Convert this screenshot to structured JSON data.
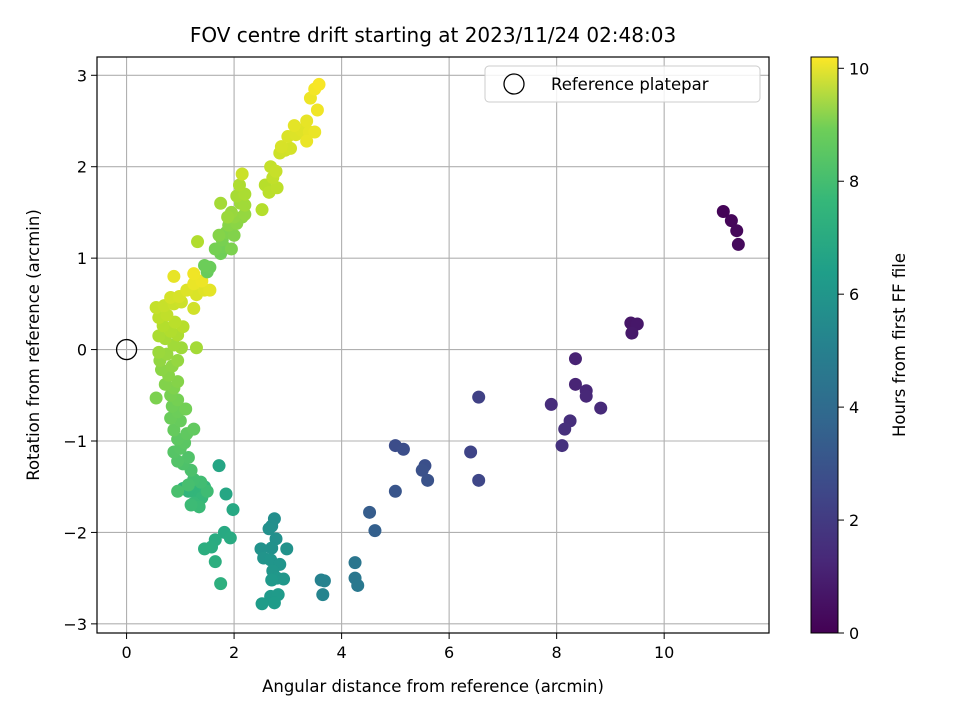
{
  "chart_data": {
    "type": "scatter",
    "title": "FOV centre drift starting at 2023/11/24 02:48:03",
    "xlabel": "Angular distance from reference (arcmin)",
    "ylabel": "Rotation from reference (arcmin)",
    "colorbar_label": "Hours from first FF file",
    "xlim": [
      -0.55,
      11.95
    ],
    "ylim": [
      -3.1,
      3.2
    ],
    "clim": [
      0,
      10.2
    ],
    "x_ticks": [
      0,
      2,
      4,
      6,
      8,
      10
    ],
    "y_ticks": [
      -3,
      -2,
      -1,
      0,
      1,
      2,
      3
    ],
    "colorbar_ticks": [
      0,
      2,
      4,
      6,
      8,
      10
    ],
    "x_tick_labels": [
      "0",
      "2",
      "4",
      "6",
      "8",
      "10"
    ],
    "y_tick_labels": [
      "−3",
      "−2",
      "−1",
      "0",
      "1",
      "2",
      "3"
    ],
    "colorbar_tick_labels": [
      "0",
      "2",
      "4",
      "6",
      "8",
      "10"
    ],
    "grid": true,
    "legend": {
      "placement": "top-right",
      "entries": [
        "Reference platepar"
      ]
    },
    "colormap": "viridis",
    "reference_point": {
      "x": 0,
      "y": 0,
      "label": "Reference platepar"
    },
    "series": [
      {
        "points": [
          {
            "x": 11.1,
            "y": 1.51,
            "c": 0.1
          },
          {
            "x": 11.25,
            "y": 1.41,
            "c": 0.15
          },
          {
            "x": 11.35,
            "y": 1.3,
            "c": 0.2
          },
          {
            "x": 11.38,
            "y": 1.15,
            "c": 0.25
          },
          {
            "x": 9.38,
            "y": 0.29,
            "c": 0.6
          },
          {
            "x": 9.5,
            "y": 0.28,
            "c": 0.65
          },
          {
            "x": 9.4,
            "y": 0.18,
            "c": 0.7
          },
          {
            "x": 8.35,
            "y": -0.1,
            "c": 1.0
          },
          {
            "x": 8.35,
            "y": -0.38,
            "c": 1.05
          },
          {
            "x": 8.55,
            "y": -0.45,
            "c": 1.1
          },
          {
            "x": 8.55,
            "y": -0.51,
            "c": 1.15
          },
          {
            "x": 8.82,
            "y": -0.64,
            "c": 1.2
          },
          {
            "x": 7.9,
            "y": -0.6,
            "c": 1.3
          },
          {
            "x": 8.25,
            "y": -0.78,
            "c": 1.35
          },
          {
            "x": 8.15,
            "y": -0.87,
            "c": 1.4
          },
          {
            "x": 8.1,
            "y": -1.05,
            "c": 1.45
          },
          {
            "x": 6.55,
            "y": -0.52,
            "c": 2.0
          },
          {
            "x": 6.4,
            "y": -1.12,
            "c": 2.1
          },
          {
            "x": 6.55,
            "y": -1.43,
            "c": 2.2
          },
          {
            "x": 5.0,
            "y": -1.05,
            "c": 2.4
          },
          {
            "x": 5.15,
            "y": -1.09,
            "c": 2.45
          },
          {
            "x": 5.55,
            "y": -1.27,
            "c": 2.5
          },
          {
            "x": 5.5,
            "y": -1.32,
            "c": 2.55
          },
          {
            "x": 5.6,
            "y": -1.43,
            "c": 2.6
          },
          {
            "x": 5.0,
            "y": -1.55,
            "c": 2.7
          },
          {
            "x": 4.52,
            "y": -1.78,
            "c": 3.0
          },
          {
            "x": 4.62,
            "y": -1.98,
            "c": 3.1
          },
          {
            "x": 4.25,
            "y": -2.33,
            "c": 4.0
          },
          {
            "x": 4.25,
            "y": -2.5,
            "c": 4.05
          },
          {
            "x": 4.3,
            "y": -2.58,
            "c": 4.1
          },
          {
            "x": 3.62,
            "y": -2.52,
            "c": 4.5
          },
          {
            "x": 3.68,
            "y": -2.53,
            "c": 4.55
          },
          {
            "x": 3.65,
            "y": -2.68,
            "c": 4.6
          },
          {
            "x": 2.75,
            "y": -1.85,
            "c": 5.0
          },
          {
            "x": 2.7,
            "y": -1.93,
            "c": 5.05
          },
          {
            "x": 2.65,
            "y": -1.96,
            "c": 5.1
          },
          {
            "x": 2.78,
            "y": -2.07,
            "c": 5.1
          },
          {
            "x": 2.7,
            "y": -2.17,
            "c": 5.15
          },
          {
            "x": 2.98,
            "y": -2.18,
            "c": 5.2
          },
          {
            "x": 2.5,
            "y": -2.18,
            "c": 5.2
          },
          {
            "x": 2.55,
            "y": -2.28,
            "c": 5.25
          },
          {
            "x": 2.68,
            "y": -2.3,
            "c": 5.3
          },
          {
            "x": 2.85,
            "y": -2.35,
            "c": 5.3
          },
          {
            "x": 2.72,
            "y": -2.42,
            "c": 5.35
          },
          {
            "x": 2.8,
            "y": -2.5,
            "c": 5.4
          },
          {
            "x": 2.92,
            "y": -2.51,
            "c": 5.4
          },
          {
            "x": 2.7,
            "y": -2.52,
            "c": 5.45
          },
          {
            "x": 2.68,
            "y": -2.7,
            "c": 5.5
          },
          {
            "x": 2.82,
            "y": -2.68,
            "c": 5.55
          },
          {
            "x": 2.75,
            "y": -2.77,
            "c": 5.6
          },
          {
            "x": 2.52,
            "y": -2.78,
            "c": 5.6
          },
          {
            "x": 1.72,
            "y": -1.27,
            "c": 6.0
          },
          {
            "x": 1.85,
            "y": -1.58,
            "c": 6.05
          },
          {
            "x": 1.98,
            "y": -1.75,
            "c": 6.1
          },
          {
            "x": 1.82,
            "y": -2.0,
            "c": 6.15
          },
          {
            "x": 1.93,
            "y": -2.06,
            "c": 6.2
          },
          {
            "x": 1.65,
            "y": -2.08,
            "c": 6.25
          },
          {
            "x": 1.58,
            "y": -2.16,
            "c": 6.3
          },
          {
            "x": 1.45,
            "y": -2.18,
            "c": 6.35
          },
          {
            "x": 1.65,
            "y": -2.32,
            "c": 6.4
          },
          {
            "x": 1.75,
            "y": -2.56,
            "c": 6.45
          },
          {
            "x": 1.05,
            "y": -1.52,
            "c": 6.6
          },
          {
            "x": 1.15,
            "y": -1.55,
            "c": 6.65
          },
          {
            "x": 1.25,
            "y": -1.55,
            "c": 6.7
          },
          {
            "x": 1.35,
            "y": -1.6,
            "c": 6.7
          },
          {
            "x": 1.45,
            "y": -1.5,
            "c": 6.75
          },
          {
            "x": 1.4,
            "y": -1.62,
            "c": 6.8
          },
          {
            "x": 1.25,
            "y": -1.68,
            "c": 6.85
          },
          {
            "x": 1.35,
            "y": -1.72,
            "c": 6.9
          },
          {
            "x": 1.2,
            "y": -1.7,
            "c": 6.95
          },
          {
            "x": 1.5,
            "y": -1.55,
            "c": 7.0
          },
          {
            "x": 1.38,
            "y": -1.45,
            "c": 7.05
          },
          {
            "x": 1.25,
            "y": -1.42,
            "c": 7.1
          },
          {
            "x": 1.15,
            "y": -1.48,
            "c": 7.15
          },
          {
            "x": 0.95,
            "y": -1.55,
            "c": 7.2
          },
          {
            "x": 1.2,
            "y": -1.32,
            "c": 7.25
          },
          {
            "x": 1.05,
            "y": -1.25,
            "c": 7.3
          },
          {
            "x": 1.15,
            "y": -1.18,
            "c": 7.35
          },
          {
            "x": 0.95,
            "y": -1.22,
            "c": 7.4
          },
          {
            "x": 0.88,
            "y": -1.12,
            "c": 7.45
          },
          {
            "x": 1.0,
            "y": -1.08,
            "c": 7.5
          },
          {
            "x": 1.08,
            "y": -1.02,
            "c": 7.55
          },
          {
            "x": 0.95,
            "y": -0.98,
            "c": 7.6
          },
          {
            "x": 1.12,
            "y": -0.92,
            "c": 7.65
          },
          {
            "x": 1.25,
            "y": -0.87,
            "c": 7.7
          },
          {
            "x": 0.88,
            "y": -0.88,
            "c": 7.75
          },
          {
            "x": 1.0,
            "y": -0.78,
            "c": 7.8
          },
          {
            "x": 0.82,
            "y": -0.75,
            "c": 7.85
          },
          {
            "x": 0.95,
            "y": -0.68,
            "c": 7.9
          },
          {
            "x": 0.85,
            "y": -0.62,
            "c": 7.95
          },
          {
            "x": 1.1,
            "y": -0.65,
            "c": 8.0
          },
          {
            "x": 0.95,
            "y": -0.55,
            "c": 8.05
          },
          {
            "x": 0.82,
            "y": -0.5,
            "c": 8.1
          },
          {
            "x": 0.55,
            "y": -0.53,
            "c": 8.15
          },
          {
            "x": 0.88,
            "y": -0.42,
            "c": 8.2
          },
          {
            "x": 0.72,
            "y": -0.38,
            "c": 8.25
          },
          {
            "x": 0.95,
            "y": -0.35,
            "c": 8.3
          },
          {
            "x": 0.78,
            "y": -0.28,
            "c": 8.35
          },
          {
            "x": 0.65,
            "y": -0.22,
            "c": 8.4
          },
          {
            "x": 0.85,
            "y": -0.18,
            "c": 8.45
          },
          {
            "x": 0.62,
            "y": -0.12,
            "c": 8.5
          },
          {
            "x": 0.95,
            "y": -0.12,
            "c": 8.55
          },
          {
            "x": 0.75,
            "y": -0.05,
            "c": 8.6
          },
          {
            "x": 0.6,
            "y": -0.03,
            "c": 8.65
          },
          {
            "x": 1.02,
            "y": 0.02,
            "c": 8.7
          },
          {
            "x": 0.88,
            "y": 0.05,
            "c": 8.75
          },
          {
            "x": 1.3,
            "y": 0.02,
            "c": 8.8
          },
          {
            "x": 0.72,
            "y": 0.12,
            "c": 8.85
          },
          {
            "x": 0.6,
            "y": 0.15,
            "c": 8.9
          },
          {
            "x": 0.95,
            "y": 0.16,
            "c": 8.95
          },
          {
            "x": 0.82,
            "y": 0.2,
            "c": 9.0
          },
          {
            "x": 0.68,
            "y": 0.26,
            "c": 9.05
          },
          {
            "x": 1.05,
            "y": 0.25,
            "c": 9.1
          },
          {
            "x": 0.9,
            "y": 0.3,
            "c": 9.15
          },
          {
            "x": 0.6,
            "y": 0.35,
            "c": 9.2
          },
          {
            "x": 0.75,
            "y": 0.38,
            "c": 9.25
          },
          {
            "x": 0.55,
            "y": 0.46,
            "c": 9.3
          },
          {
            "x": 0.7,
            "y": 0.48,
            "c": 9.35
          },
          {
            "x": 0.88,
            "y": 0.5,
            "c": 9.4
          },
          {
            "x": 1.02,
            "y": 0.52,
            "c": 9.45
          },
          {
            "x": 1.25,
            "y": 0.45,
            "c": 9.5
          },
          {
            "x": 0.82,
            "y": 0.57,
            "c": 9.55
          },
          {
            "x": 0.98,
            "y": 0.58,
            "c": 9.6
          },
          {
            "x": 1.3,
            "y": 0.6,
            "c": 9.65
          },
          {
            "x": 1.12,
            "y": 0.65,
            "c": 9.7
          },
          {
            "x": 1.45,
            "y": 0.65,
            "c": 9.75
          },
          {
            "x": 1.55,
            "y": 0.65,
            "c": 9.8
          },
          {
            "x": 0.88,
            "y": 0.8,
            "c": 9.85
          },
          {
            "x": 1.25,
            "y": 0.72,
            "c": 9.9
          },
          {
            "x": 1.4,
            "y": 0.75,
            "c": 9.95
          },
          {
            "x": 1.25,
            "y": 0.83,
            "c": 10.0
          }
        ]
      }
    ],
    "series_extra": [
      {
        "x": 1.5,
        "y": 0.85,
        "c": 7.8
      },
      {
        "x": 1.55,
        "y": 0.9,
        "c": 7.85
      },
      {
        "x": 1.45,
        "y": 0.92,
        "c": 7.9
      },
      {
        "x": 1.75,
        "y": 1.05,
        "c": 7.95
      },
      {
        "x": 1.82,
        "y": 1.12,
        "c": 8.0
      },
      {
        "x": 1.65,
        "y": 1.1,
        "c": 8.05
      },
      {
        "x": 1.78,
        "y": 1.2,
        "c": 8.1
      },
      {
        "x": 1.95,
        "y": 1.1,
        "c": 8.15
      },
      {
        "x": 1.85,
        "y": 1.28,
        "c": 8.2
      },
      {
        "x": 2.0,
        "y": 1.25,
        "c": 8.25
      },
      {
        "x": 1.72,
        "y": 1.25,
        "c": 8.3
      },
      {
        "x": 1.9,
        "y": 1.36,
        "c": 8.35
      },
      {
        "x": 2.05,
        "y": 1.38,
        "c": 8.4
      },
      {
        "x": 2.15,
        "y": 1.45,
        "c": 8.45
      },
      {
        "x": 2.0,
        "y": 1.45,
        "c": 8.5
      },
      {
        "x": 2.2,
        "y": 1.48,
        "c": 8.55
      },
      {
        "x": 1.95,
        "y": 1.5,
        "c": 8.6
      },
      {
        "x": 1.88,
        "y": 1.45,
        "c": 8.65
      },
      {
        "x": 2.12,
        "y": 1.6,
        "c": 8.7
      },
      {
        "x": 2.2,
        "y": 1.58,
        "c": 8.75
      },
      {
        "x": 1.75,
        "y": 1.6,
        "c": 8.8
      },
      {
        "x": 2.05,
        "y": 1.68,
        "c": 8.85
      },
      {
        "x": 2.2,
        "y": 1.7,
        "c": 8.9
      },
      {
        "x": 2.1,
        "y": 1.8,
        "c": 8.95
      },
      {
        "x": 1.32,
        "y": 1.18,
        "c": 9.0
      },
      {
        "x": 2.52,
        "y": 1.53,
        "c": 9.05
      },
      {
        "x": 2.58,
        "y": 1.8,
        "c": 9.1
      },
      {
        "x": 2.65,
        "y": 1.72,
        "c": 9.15
      },
      {
        "x": 2.8,
        "y": 1.77,
        "c": 9.2
      },
      {
        "x": 2.72,
        "y": 1.88,
        "c": 9.25
      },
      {
        "x": 2.68,
        "y": 2.0,
        "c": 9.3
      },
      {
        "x": 2.78,
        "y": 1.95,
        "c": 9.35
      },
      {
        "x": 2.15,
        "y": 1.92,
        "c": 9.4
      },
      {
        "x": 2.85,
        "y": 2.15,
        "c": 9.45
      },
      {
        "x": 2.95,
        "y": 2.18,
        "c": 9.5
      },
      {
        "x": 3.05,
        "y": 2.2,
        "c": 9.55
      },
      {
        "x": 2.88,
        "y": 2.22,
        "c": 9.6
      },
      {
        "x": 3.0,
        "y": 2.33,
        "c": 9.65
      },
      {
        "x": 3.15,
        "y": 2.35,
        "c": 9.7
      },
      {
        "x": 3.25,
        "y": 2.4,
        "c": 9.75
      },
      {
        "x": 3.12,
        "y": 2.45,
        "c": 9.8
      },
      {
        "x": 3.35,
        "y": 2.5,
        "c": 9.85
      },
      {
        "x": 3.4,
        "y": 2.38,
        "c": 9.85
      },
      {
        "x": 3.5,
        "y": 2.38,
        "c": 9.9
      },
      {
        "x": 3.35,
        "y": 2.28,
        "c": 9.9
      },
      {
        "x": 3.42,
        "y": 2.75,
        "c": 9.95
      },
      {
        "x": 3.55,
        "y": 2.62,
        "c": 10.0
      },
      {
        "x": 3.5,
        "y": 2.85,
        "c": 10.05
      },
      {
        "x": 3.58,
        "y": 2.9,
        "c": 10.1
      }
    ]
  }
}
